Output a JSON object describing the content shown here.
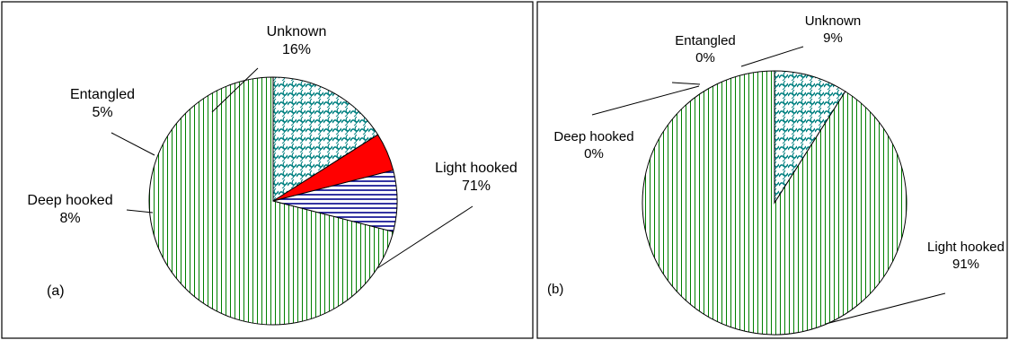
{
  "chart_data": [
    {
      "type": "pie",
      "panel_label": "(a)",
      "slices": [
        {
          "label": "Light hooked",
          "value": 71,
          "value_label": "71%",
          "color": "#008000",
          "pattern": "vertical-stripes-green"
        },
        {
          "label": "Deep hooked",
          "value": 8,
          "value_label": "8%",
          "color": "#00008b",
          "pattern": "horizontal-stripes-blue"
        },
        {
          "label": "Entangled",
          "value": 5,
          "value_label": "5%",
          "color": "#ff0000",
          "pattern": "solid-red"
        },
        {
          "label": "Unknown",
          "value": 16,
          "value_label": "16%",
          "color": "#008080",
          "pattern": "teal-wave"
        }
      ]
    },
    {
      "type": "pie",
      "panel_label": "(b)",
      "slices": [
        {
          "label": "Light hooked",
          "value": 91,
          "value_label": "91%",
          "color": "#008000",
          "pattern": "vertical-stripes-green"
        },
        {
          "label": "Deep hooked",
          "value": 0,
          "value_label": "0%",
          "color": "#00008b",
          "pattern": "horizontal-stripes-blue"
        },
        {
          "label": "Entangled",
          "value": 0,
          "value_label": "0%",
          "color": "#ff0000",
          "pattern": "solid-red"
        },
        {
          "label": "Unknown",
          "value": 9,
          "value_label": "9%",
          "color": "#008080",
          "pattern": "teal-wave"
        }
      ]
    }
  ]
}
